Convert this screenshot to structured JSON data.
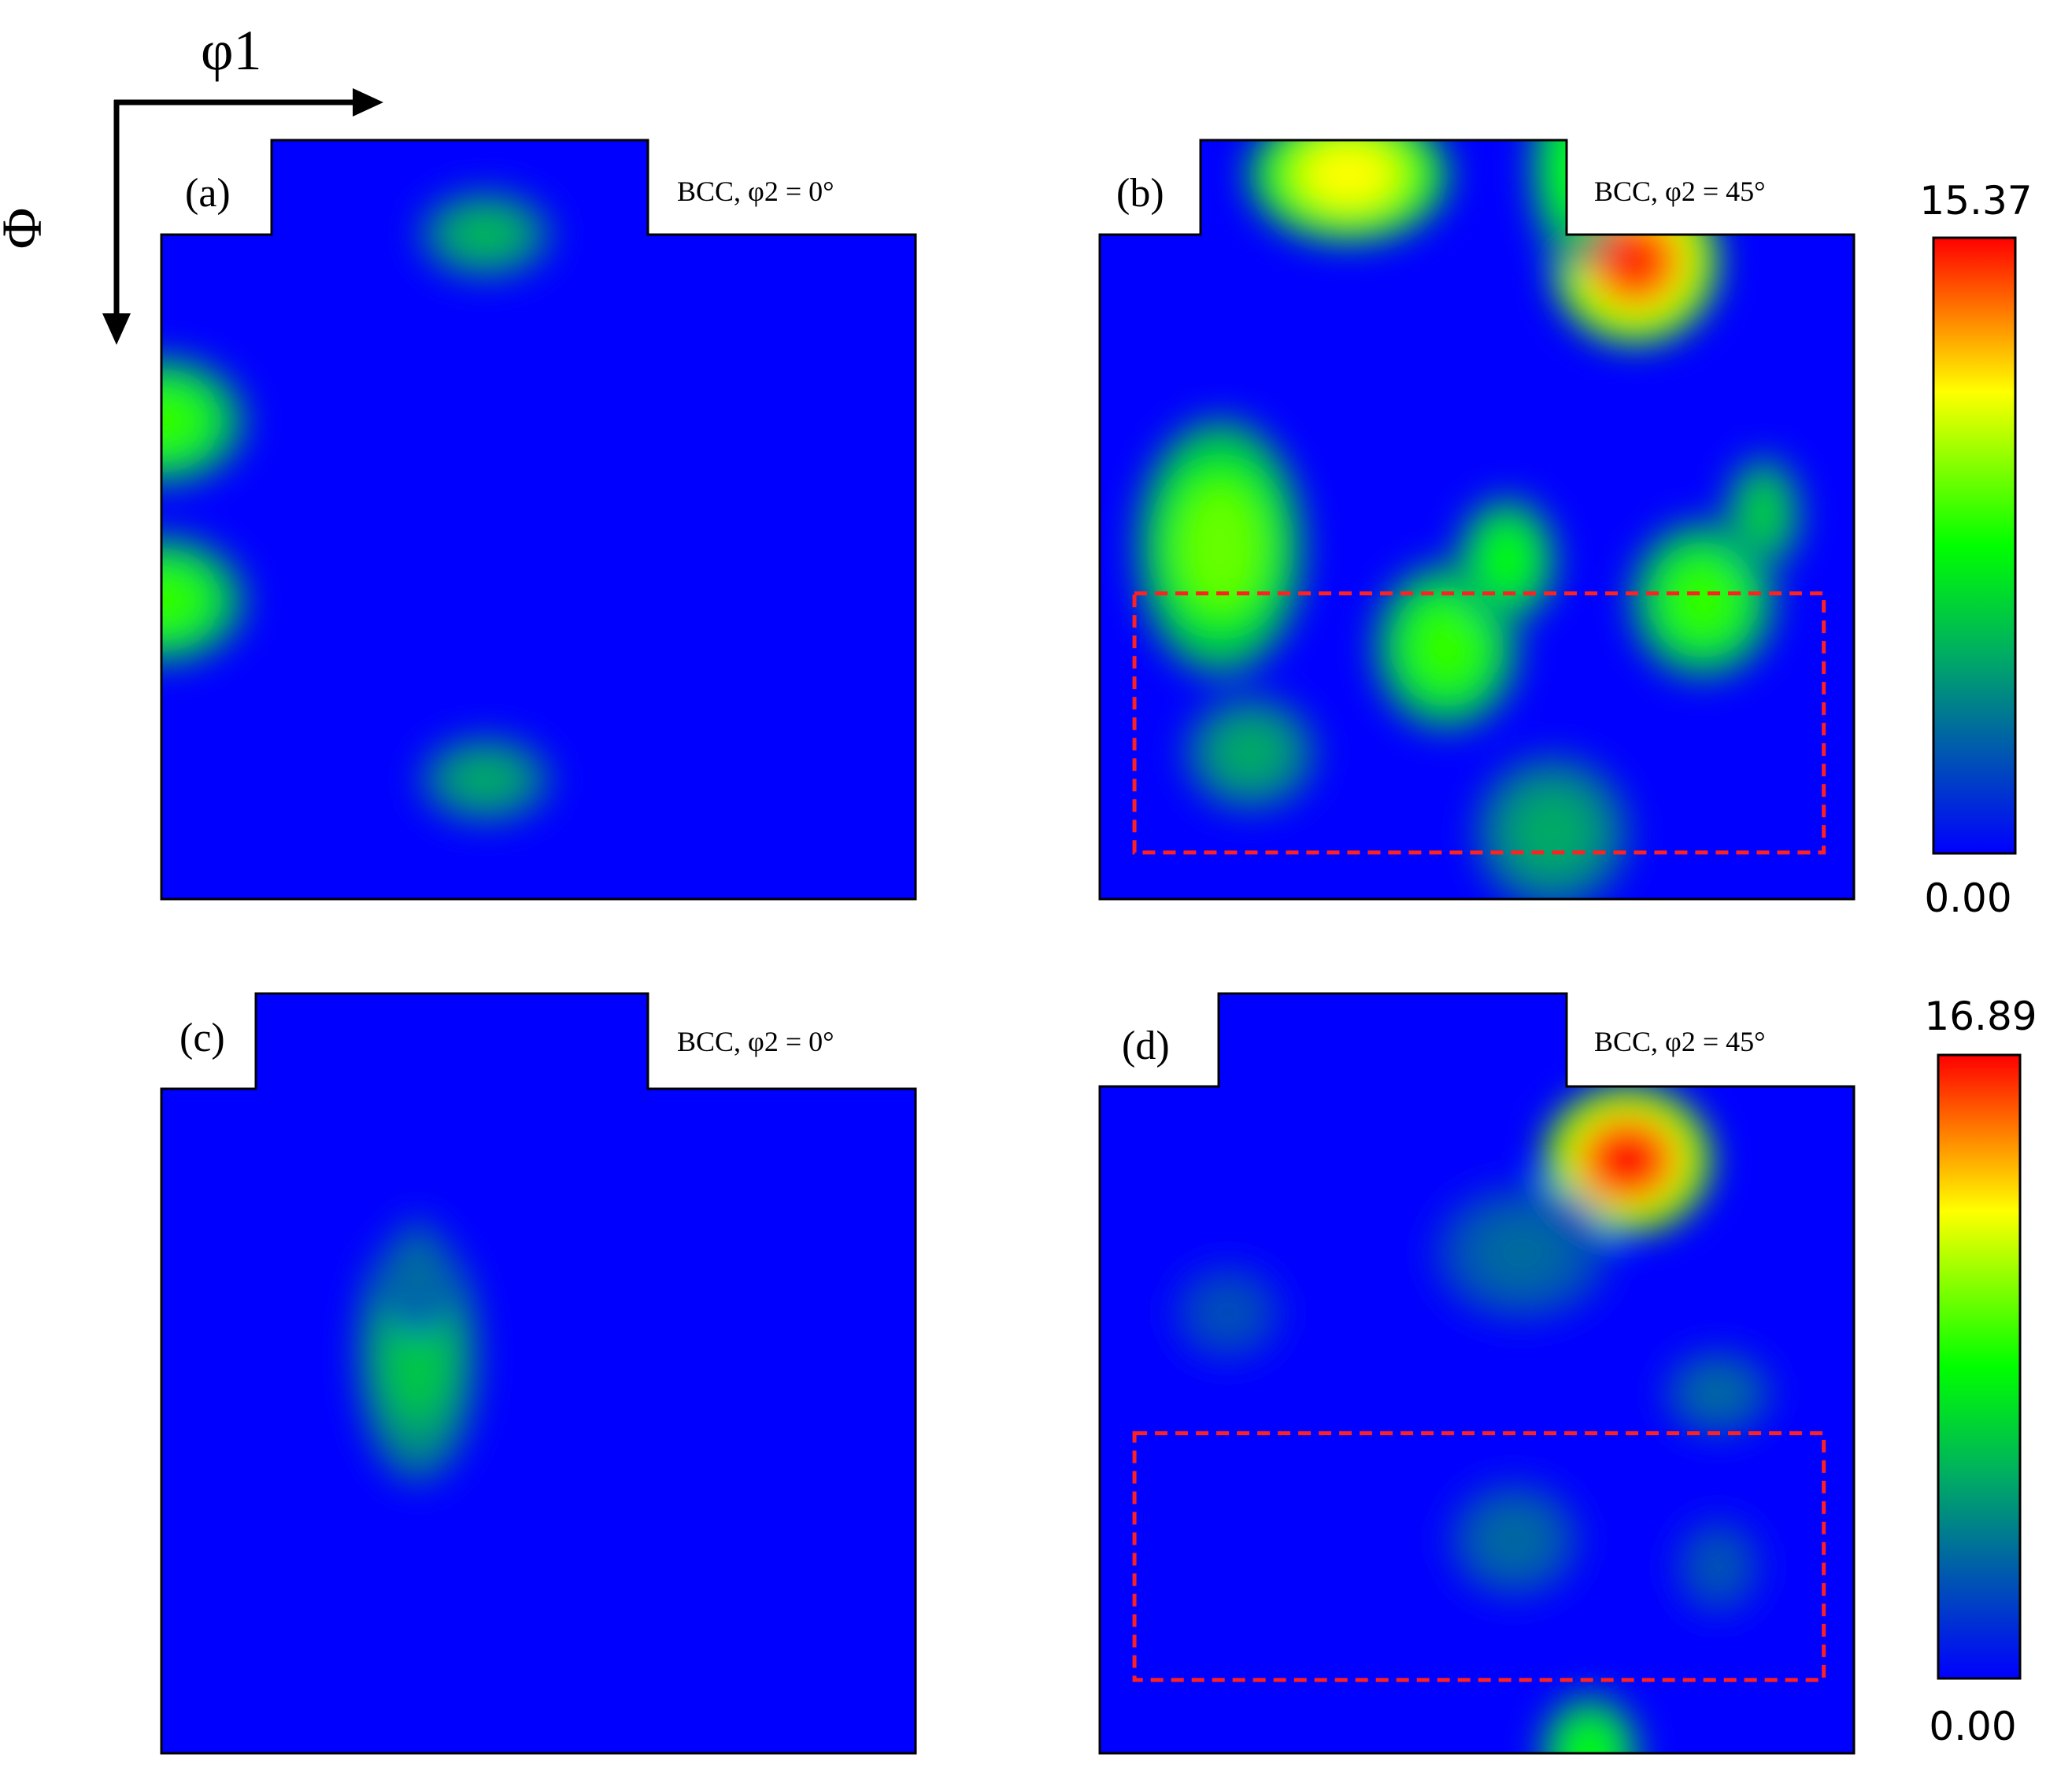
{
  "figure": {
    "axis_labels": {
      "phi1": "φ1",
      "Phi": "Φ"
    }
  },
  "chart_data": [
    {
      "type": "heatmap",
      "panel_label": "(a)",
      "title": "BCC,  φ2 = 0°",
      "colorbar": {
        "min": "0.00",
        "max": "15.37"
      },
      "blobs": [
        {
          "x": 0.0,
          "y": 0.28,
          "rx": 0.075,
          "ry": 0.065,
          "v": 0.55
        },
        {
          "x": 0.0,
          "y": 0.55,
          "rx": 0.075,
          "ry": 0.065,
          "v": 0.55
        },
        {
          "x": 0.43,
          "y": 0.0,
          "rx": 0.06,
          "ry": 0.045,
          "v": 0.35
        },
        {
          "x": 0.43,
          "y": 0.82,
          "rx": 0.06,
          "ry": 0.045,
          "v": 0.32
        }
      ],
      "rect": null
    },
    {
      "type": "heatmap",
      "panel_label": "(b)",
      "title": "BCC,  φ2 = 45°",
      "colorbar": {
        "min": "0.00",
        "max": "15.37"
      },
      "blobs": [
        {
          "x": 0.33,
          "y": -0.09,
          "rx": 0.09,
          "ry": 0.07,
          "v": 0.75
        },
        {
          "x": 0.71,
          "y": 0.04,
          "rx": 0.075,
          "ry": 0.085,
          "v": 0.95
        },
        {
          "x": 0.63,
          "y": -0.1,
          "rx": 0.04,
          "ry": 0.1,
          "v": 0.5
        },
        {
          "x": 0.16,
          "y": 0.47,
          "rx": 0.075,
          "ry": 0.13,
          "v": 0.6
        },
        {
          "x": 0.46,
          "y": 0.62,
          "rx": 0.065,
          "ry": 0.085,
          "v": 0.55
        },
        {
          "x": 0.54,
          "y": 0.49,
          "rx": 0.045,
          "ry": 0.065,
          "v": 0.5
        },
        {
          "x": 0.8,
          "y": 0.55,
          "rx": 0.065,
          "ry": 0.08,
          "v": 0.55
        },
        {
          "x": 0.88,
          "y": 0.42,
          "rx": 0.035,
          "ry": 0.06,
          "v": 0.4
        },
        {
          "x": 0.2,
          "y": 0.78,
          "rx": 0.06,
          "ry": 0.06,
          "v": 0.32
        },
        {
          "x": 0.6,
          "y": 0.9,
          "rx": 0.07,
          "ry": 0.08,
          "v": 0.32
        }
      ],
      "rect": {
        "x0": 0.046,
        "y0": 0.54,
        "x1": 0.96,
        "y1": 0.93
      }
    },
    {
      "type": "heatmap",
      "panel_label": "(c)",
      "title": "BCC,  φ2 = 0°",
      "colorbar": {
        "min": "0.00",
        "max": "16.89"
      },
      "blobs": [
        {
          "x": 0.34,
          "y": 0.4,
          "rx": 0.055,
          "ry": 0.13,
          "v": 0.38
        },
        {
          "x": 0.34,
          "y": 0.28,
          "rx": 0.03,
          "ry": 0.06,
          "v": 0.22
        }
      ],
      "rect": null
    },
    {
      "type": "heatmap",
      "panel_label": "(d)",
      "title": "BCC,  φ2 = 45°",
      "colorbar": {
        "min": "0.00",
        "max": "16.89"
      },
      "blobs": [
        {
          "x": 0.7,
          "y": 0.11,
          "rx": 0.075,
          "ry": 0.075,
          "v": 1.0
        },
        {
          "x": 0.56,
          "y": 0.25,
          "rx": 0.08,
          "ry": 0.07,
          "v": 0.2
        },
        {
          "x": 0.17,
          "y": 0.34,
          "rx": 0.05,
          "ry": 0.05,
          "v": 0.15
        },
        {
          "x": 0.82,
          "y": 0.46,
          "rx": 0.05,
          "ry": 0.045,
          "v": 0.2
        },
        {
          "x": 0.55,
          "y": 0.68,
          "rx": 0.06,
          "ry": 0.06,
          "v": 0.2
        },
        {
          "x": 0.82,
          "y": 0.72,
          "rx": 0.04,
          "ry": 0.05,
          "v": 0.16
        },
        {
          "x": 0.65,
          "y": 1.0,
          "rx": 0.045,
          "ry": 0.06,
          "v": 0.5
        }
      ],
      "rect": {
        "x0": 0.046,
        "y0": 0.52,
        "x1": 0.96,
        "y1": 0.89
      }
    }
  ]
}
